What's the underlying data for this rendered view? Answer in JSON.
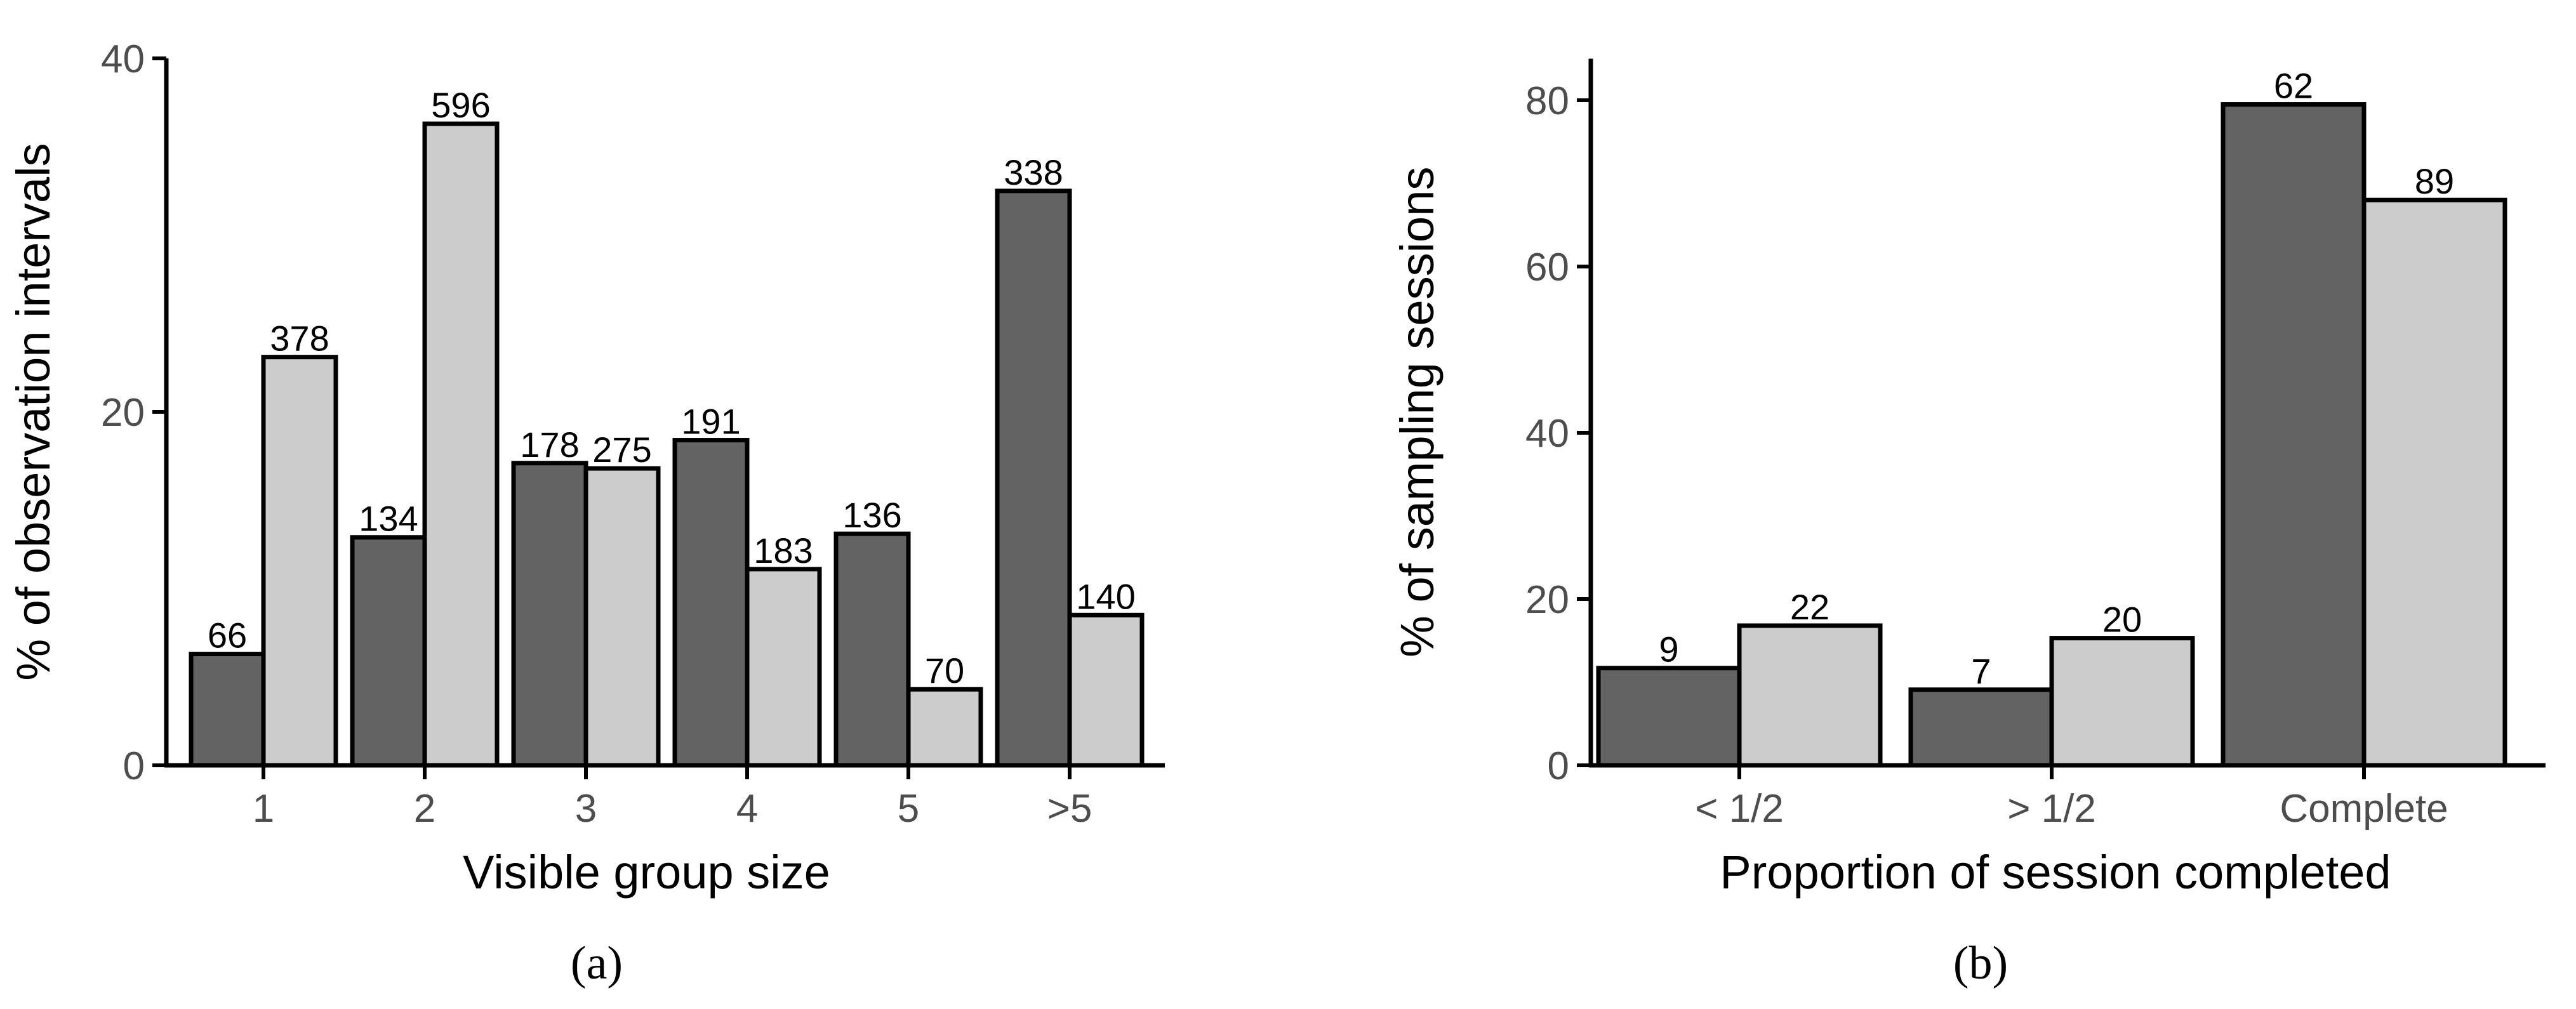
{
  "chart_data": [
    {
      "type": "bar",
      "panel_label": "(a)",
      "xlabel": "Visible group size",
      "ylabel": "% of observation intervals",
      "categories": [
        "1",
        "2",
        "3",
        "4",
        "5",
        ">5"
      ],
      "ylim": [
        0,
        40
      ],
      "yticks": [
        0,
        20,
        40
      ],
      "grid": false,
      "series": [
        {
          "color": "#636363",
          "values": [
            6.3,
            12.9,
            17.1,
            18.4,
            13.1,
            32.5
          ],
          "labels": [
            "66",
            "134",
            "178",
            "191",
            "136",
            "338"
          ]
        },
        {
          "color": "#cccccc",
          "values": [
            23.1,
            36.3,
            16.8,
            11.1,
            4.3,
            8.5
          ],
          "labels": [
            "378",
            "596",
            "275",
            "183",
            "70",
            "140"
          ]
        }
      ]
    },
    {
      "type": "bar",
      "panel_label": "(b)",
      "xlabel": "Proportion of session completed",
      "ylabel": "% of sampling sessions",
      "categories": [
        "< 1/2",
        "> 1/2",
        "Complete"
      ],
      "ylim": [
        0,
        85
      ],
      "yticks": [
        0,
        20,
        40,
        60,
        80
      ],
      "grid": false,
      "series": [
        {
          "color": "#636363",
          "values": [
            11.7,
            9.1,
            79.5
          ],
          "labels": [
            "9",
            "7",
            "62"
          ]
        },
        {
          "color": "#cccccc",
          "values": [
            16.8,
            15.3,
            68.0
          ],
          "labels": [
            "22",
            "20",
            "89"
          ]
        }
      ]
    }
  ]
}
